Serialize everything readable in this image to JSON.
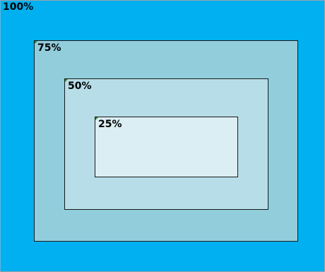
{
  "levels": [
    {
      "label": "100%",
      "value": 1.0,
      "color": "#00b0f0"
    },
    {
      "label": "75%",
      "value": 0.75,
      "color": "#92cddc"
    },
    {
      "label": "50%",
      "value": 0.5,
      "color": "#b7dde8"
    },
    {
      "label": "25%",
      "value": 0.25,
      "color": "#dbeef3"
    }
  ],
  "corner_marker_color": "#2e7d32"
}
